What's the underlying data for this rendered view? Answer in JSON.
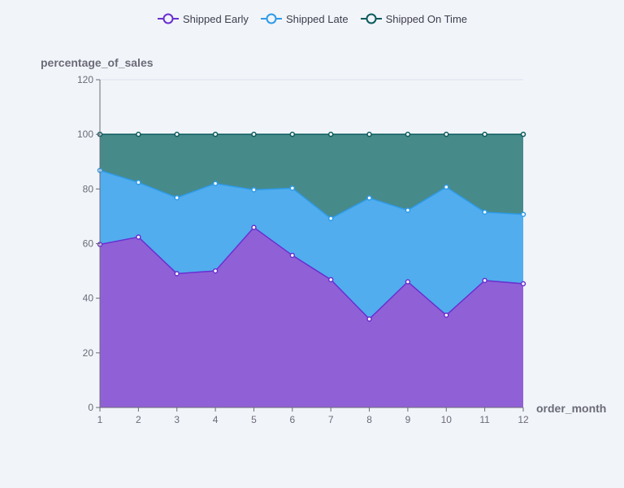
{
  "chart_data": {
    "type": "area",
    "stacked": true,
    "x": [
      1,
      2,
      3,
      4,
      5,
      6,
      7,
      8,
      9,
      10,
      11,
      12
    ],
    "xlabel": "order_month",
    "ylabel": "percentage_of_sales",
    "ylim": [
      0,
      120
    ],
    "yticks": [
      0,
      20,
      40,
      60,
      80,
      100,
      120
    ],
    "grid": true,
    "legend_position": "top-center",
    "series": [
      {
        "name": "Shipped Early",
        "color": "#6a2fd0",
        "fill": "#9061d6",
        "values": [
          59.7,
          62.4,
          49.0,
          50.0,
          65.9,
          55.7,
          46.8,
          32.4,
          46.0,
          33.8,
          46.5,
          45.3
        ]
      },
      {
        "name": "Shipped Late",
        "color": "#2d9be8",
        "fill": "#51adee",
        "values": [
          27.1,
          20.0,
          27.8,
          32.0,
          13.8,
          24.6,
          22.4,
          44.3,
          26.2,
          46.9,
          25.0,
          25.4
        ]
      },
      {
        "name": "Shipped On Time",
        "color": "#0b5b5e",
        "fill": "#478a8a",
        "values": [
          13.2,
          17.6,
          23.2,
          18.0,
          20.3,
          19.7,
          30.8,
          23.3,
          27.8,
          19.3,
          28.5,
          29.3
        ]
      }
    ]
  }
}
